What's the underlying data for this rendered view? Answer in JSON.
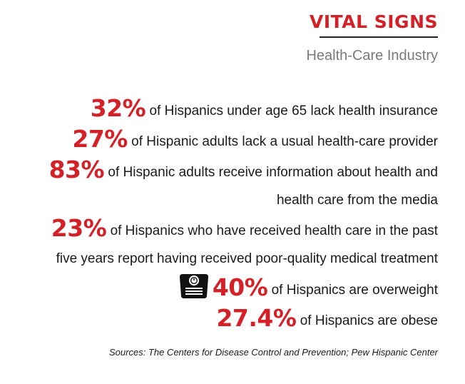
{
  "header": {
    "title": "VITAL SIGNS",
    "subtitle": "Health-Care Industry"
  },
  "stats": [
    {
      "percent": "32%",
      "line1": "of Hispanics under age 65 lack health insurance"
    },
    {
      "percent": "27%",
      "line1": "of Hispanic adults lack a usual health-care provider"
    },
    {
      "percent": "83%",
      "line1": "of Hispanic adults receive information about health and",
      "line2": "health care from the media"
    },
    {
      "percent": "23%",
      "line1": "of Hispanics who have received health care in the past",
      "line2": "five years report having received poor-quality medical treatment"
    },
    {
      "percent": "40%",
      "line1": "of Hispanics are overweight",
      "icon": "bathroom-scale-icon"
    },
    {
      "percent": "27.4%",
      "line1": "of Hispanics are obese"
    }
  ],
  "footer": {
    "sources": "Sources: The Centers for Disease Control and Prevention; Pew Hispanic Center"
  },
  "colors": {
    "accent": "#d42027",
    "text": "#1a1a1a",
    "subtitle": "#7a7a7a"
  }
}
